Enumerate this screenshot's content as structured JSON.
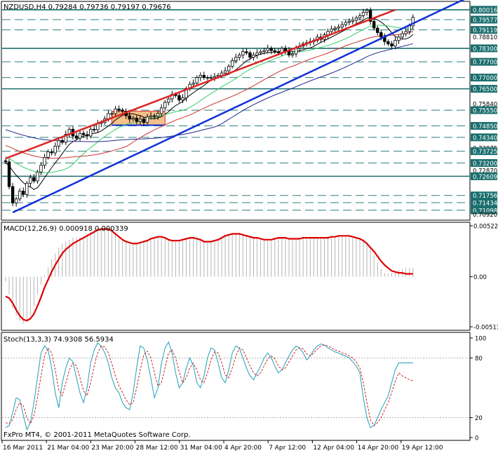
{
  "window": {
    "title": "NZDUSD,H4",
    "ohlc": [
      "0.79284",
      "0.79736",
      "0.79197",
      "0.79676"
    ],
    "watermark": "FxPro MT4, © 2001-2011 MetaQuotes Software Corp."
  },
  "colors": {
    "frame": "#000000",
    "candle": "#000000",
    "ma_black": "#000000",
    "ma_green": "#33cc66",
    "ma_red": "#cc3333",
    "ma_navy": "#1f2a8f",
    "channel_red": "#dd2222",
    "channel_blue": "#1030d8",
    "hline_teal": "#1b6e6e",
    "hline_dash": "#2a7f7f",
    "box": "#f5c08a",
    "macd_line": "#dd0000",
    "macd_hist": "#b4b4b4",
    "stoch_main": "#1fa0b8",
    "stoch_signal": "#cc2222"
  },
  "chart_data": [
    {
      "type": "candlestick",
      "title": "NZDUSD,H4",
      "x_ticks": [
        "16 Mar 2011",
        "21 Mar 04:00",
        "23 Mar 20:00",
        "28 Mar 12:00",
        "31 Mar 04:00",
        "4 Apr 20:00",
        "7 Apr 12:00",
        "12 Apr 04:00",
        "14 Apr 20:00",
        "19 Apr 12:00"
      ],
      "y_range": [
        0.7078,
        0.802
      ],
      "price_labels": [
        "0.80016",
        "0.79577",
        "0.79119",
        "0.78810",
        "0.78300",
        "0.77700",
        "0.77000",
        "0.76500",
        "0.75840",
        "0.75550",
        "0.74850",
        "0.74340",
        "0.73875",
        "0.73725",
        "0.73200",
        "0.72870",
        "0.72609",
        "0.71756",
        "0.71434",
        "0.71098",
        "0.70920"
      ],
      "highlighted_labels": [
        "0.80016",
        "0.79577",
        "0.79119",
        "0.78300",
        "0.77700",
        "0.77000",
        "0.76500",
        "0.75550",
        "0.74850",
        "0.74340",
        "0.73725",
        "0.73200",
        "0.72609",
        "0.71756",
        "0.71434",
        "0.71098"
      ],
      "horizontal_levels": [
        {
          "value": 0.80016,
          "style": "solid"
        },
        {
          "value": 0.79577,
          "style": "dashed"
        },
        {
          "value": 0.79119,
          "style": "dashed"
        },
        {
          "value": 0.783,
          "style": "solid"
        },
        {
          "value": 0.777,
          "style": "dashed"
        },
        {
          "value": 0.77,
          "style": "dashed"
        },
        {
          "value": 0.765,
          "style": "solid"
        },
        {
          "value": 0.7555,
          "style": "dashed"
        },
        {
          "value": 0.7485,
          "style": "dashed"
        },
        {
          "value": 0.7434,
          "style": "dashed"
        },
        {
          "value": 0.73725,
          "style": "dashed"
        },
        {
          "value": 0.732,
          "style": "dashed"
        },
        {
          "value": 0.72609,
          "style": "solid"
        },
        {
          "value": 0.71756,
          "style": "dashed"
        },
        {
          "value": 0.71434,
          "style": "dashed"
        },
        {
          "value": 0.71098,
          "style": "dashed"
        }
      ],
      "candles": {
        "count": 116,
        "close": [
          0.7325,
          0.7215,
          0.7142,
          0.716,
          0.7195,
          0.718,
          0.723,
          0.7255,
          0.724,
          0.728,
          0.731,
          0.7345,
          0.737,
          0.7365,
          0.7395,
          0.742,
          0.7412,
          0.7448,
          0.747,
          0.744,
          0.743,
          0.7452,
          0.7446,
          0.744,
          0.747,
          0.7468,
          0.7496,
          0.75,
          0.7516,
          0.754,
          0.754,
          0.756,
          0.7555,
          0.755,
          0.753,
          0.7515,
          0.752,
          0.7505,
          0.7515,
          0.75,
          0.7525,
          0.753,
          0.7528,
          0.754,
          0.7565,
          0.759,
          0.7605,
          0.7625,
          0.762,
          0.76,
          0.761,
          0.765,
          0.767,
          0.7675,
          0.77,
          0.771,
          0.77,
          0.77,
          0.77,
          0.7705,
          0.771,
          0.772,
          0.773,
          0.775,
          0.7775,
          0.779,
          0.78,
          0.7815,
          0.781,
          0.779,
          0.78,
          0.781,
          0.7815,
          0.782,
          0.783,
          0.782,
          0.7815,
          0.781,
          0.783,
          0.782,
          0.78,
          0.7805,
          0.783,
          0.784,
          0.785,
          0.7855,
          0.786,
          0.7865,
          0.788,
          0.787,
          0.789,
          0.7905,
          0.7915,
          0.792,
          0.7925,
          0.7935,
          0.7945,
          0.795,
          0.7955,
          0.7965,
          0.7975,
          0.799,
          0.7999,
          0.795,
          0.792,
          0.79,
          0.788,
          0.786,
          0.785,
          0.784,
          0.7865,
          0.788,
          0.7895,
          0.7905,
          0.793,
          0.7968
        ],
        "open_close_offsets_note": "open of each bar equals the previous close"
      },
      "moving_averages": [
        {
          "color": "black",
          "period_label": ""
        },
        {
          "color": "green",
          "period_label": ""
        },
        {
          "color": "red",
          "period_label": ""
        },
        {
          "color": "navy",
          "period_label": ""
        }
      ],
      "trend_channel": {
        "upper": {
          "from_bar": 0,
          "from_value": 0.734,
          "to_bar": 110,
          "to_value": 0.8001
        },
        "lower": {
          "from_bar": 2,
          "from_value": 0.71,
          "to_bar": 116,
          "to_value": 0.7948
        }
      },
      "consolidation_box": {
        "from_bar": 30,
        "to_bar": 45,
        "low": 0.7488,
        "high": 0.755
      }
    },
    {
      "type": "bar",
      "title": "MACD(12,26,9) 0.000918 0.000339",
      "y_ticks": [
        "0.005228",
        "0.00",
        "-0.005133"
      ],
      "y_range": [
        -0.005133,
        0.005228
      ],
      "histogram_note": "MACD main line drawn as histogram, signal as line",
      "hist": [
        -0.0005,
        -0.0018,
        -0.0032,
        -0.004,
        -0.0045,
        -0.0048,
        -0.0046,
        -0.004,
        -0.003,
        -0.0018,
        -0.0008,
        0.0002,
        0.001,
        0.0018,
        0.0024,
        0.003,
        0.0034,
        0.0036,
        0.0038,
        0.004,
        0.004,
        0.0041,
        0.0042,
        0.0044,
        0.0046,
        0.0048,
        0.0049,
        0.005,
        0.0049,
        0.0048,
        0.0046,
        0.0043,
        0.004,
        0.0037,
        0.0035,
        0.0034,
        0.0033,
        0.0033,
        0.0034,
        0.0036,
        0.0038,
        0.004,
        0.0041,
        0.0042,
        0.0042,
        0.004,
        0.0038,
        0.0037,
        0.0036,
        0.0036,
        0.0037,
        0.0039,
        0.0041,
        0.0042,
        0.0041,
        0.0039,
        0.0037,
        0.0035,
        0.0035,
        0.0036,
        0.0038,
        0.004,
        0.0042,
        0.0044,
        0.0045,
        0.0045,
        0.0045,
        0.0044,
        0.0043,
        0.0042,
        0.0041,
        0.004,
        0.0039,
        0.0038,
        0.0037,
        0.0037,
        0.0038,
        0.004,
        0.0041,
        0.0041,
        0.004,
        0.0039,
        0.0038,
        0.0038,
        0.0039,
        0.004,
        0.0041,
        0.0041,
        0.004,
        0.0039,
        0.0039,
        0.0039,
        0.004,
        0.0041,
        0.0041,
        0.0041,
        0.0041,
        0.0041,
        0.004,
        0.004,
        0.0039,
        0.0038,
        0.0036,
        0.003,
        0.0022,
        0.0015,
        0.0008,
        0.0004,
        0.0003,
        0.0004,
        0.0005,
        0.0007,
        0.0008,
        0.0009,
        0.0009,
        0.0009
      ],
      "signal": [
        -0.002,
        -0.0022,
        -0.0027,
        -0.0034,
        -0.004,
        -0.0044,
        -0.0045,
        -0.0043,
        -0.0038,
        -0.003,
        -0.0021,
        -0.0011,
        -0.0003,
        0.0005,
        0.0012,
        0.0018,
        0.0024,
        0.0028,
        0.0031,
        0.0034,
        0.0036,
        0.0038,
        0.004,
        0.0042,
        0.0044,
        0.0046,
        0.0048,
        0.0049,
        0.0049,
        0.0049,
        0.0047,
        0.0044,
        0.0041,
        0.0038,
        0.0036,
        0.0035,
        0.0034,
        0.0034,
        0.0035,
        0.0036,
        0.0037,
        0.0039,
        0.004,
        0.0041,
        0.0041,
        0.004,
        0.0038,
        0.0037,
        0.0037,
        0.0037,
        0.0038,
        0.0039,
        0.004,
        0.004,
        0.0039,
        0.0038,
        0.0036,
        0.0036,
        0.0036,
        0.0037,
        0.0038,
        0.004,
        0.0042,
        0.0043,
        0.0044,
        0.0044,
        0.0044,
        0.0043,
        0.0042,
        0.0041,
        0.004,
        0.004,
        0.0039,
        0.0038,
        0.0038,
        0.0038,
        0.0039,
        0.004,
        0.004,
        0.004,
        0.0039,
        0.0039,
        0.0039,
        0.0039,
        0.004,
        0.004,
        0.004,
        0.004,
        0.004,
        0.004,
        0.004,
        0.004,
        0.0041,
        0.0041,
        0.0042,
        0.0042,
        0.0042,
        0.0042,
        0.0041,
        0.004,
        0.0039,
        0.0037,
        0.0034,
        0.003,
        0.0026,
        0.0021,
        0.0016,
        0.0012,
        0.0009,
        0.0006,
        0.0005,
        0.0004,
        0.0004,
        0.0003,
        0.0003,
        0.0003
      ]
    },
    {
      "type": "line",
      "title": "Stoch(13,3,3) 74.9308 56.5934",
      "y_ticks": [
        "100",
        "80",
        "20",
        "0"
      ],
      "y_range": [
        0,
        100
      ],
      "series": [
        {
          "color": "teal",
          "values": [
            10,
            12,
            25,
            40,
            38,
            22,
            8,
            15,
            35,
            60,
            85,
            92,
            88,
            70,
            45,
            30,
            55,
            70,
            80,
            76,
            60,
            45,
            35,
            50,
            75,
            88,
            95,
            92,
            85,
            75,
            60,
            50,
            45,
            35,
            30,
            28,
            45,
            70,
            92,
            90,
            78,
            60,
            40,
            50,
            75,
            90,
            96,
            85,
            65,
            50,
            55,
            70,
            80,
            72,
            55,
            50,
            62,
            80,
            90,
            88,
            75,
            60,
            55,
            68,
            85,
            92,
            90,
            80,
            70,
            62,
            58,
            65,
            72,
            80,
            85,
            80,
            72,
            65,
            68,
            75,
            82,
            88,
            92,
            90,
            85,
            78,
            82,
            88,
            92,
            94,
            93,
            90,
            88,
            86,
            85,
            83,
            82,
            80,
            76,
            72,
            65,
            40,
            20,
            10,
            12,
            20,
            28,
            35,
            42,
            55,
            68,
            75,
            75,
            75,
            75,
            75
          ]
        },
        {
          "color": "red",
          "values": [
            15,
            14,
            18,
            28,
            35,
            32,
            20,
            14,
            22,
            40,
            62,
            82,
            90,
            85,
            68,
            48,
            42,
            55,
            68,
            75,
            72,
            60,
            47,
            42,
            55,
            72,
            85,
            92,
            91,
            85,
            74,
            62,
            52,
            45,
            38,
            33,
            35,
            50,
            68,
            83,
            87,
            80,
            65,
            52,
            55,
            70,
            85,
            88,
            80,
            66,
            55,
            60,
            70,
            75,
            68,
            58,
            55,
            65,
            78,
            86,
            85,
            75,
            63,
            60,
            70,
            82,
            90,
            88,
            80,
            72,
            65,
            62,
            65,
            72,
            79,
            82,
            79,
            72,
            68,
            70,
            76,
            82,
            88,
            90,
            89,
            84,
            82,
            85,
            89,
            92,
            93,
            92,
            90,
            88,
            87,
            85,
            84,
            82,
            80,
            76,
            70,
            55,
            35,
            18,
            12,
            15,
            20,
            28,
            35,
            45,
            57,
            65,
            62,
            60,
            58,
            57
          ]
        }
      ]
    }
  ]
}
